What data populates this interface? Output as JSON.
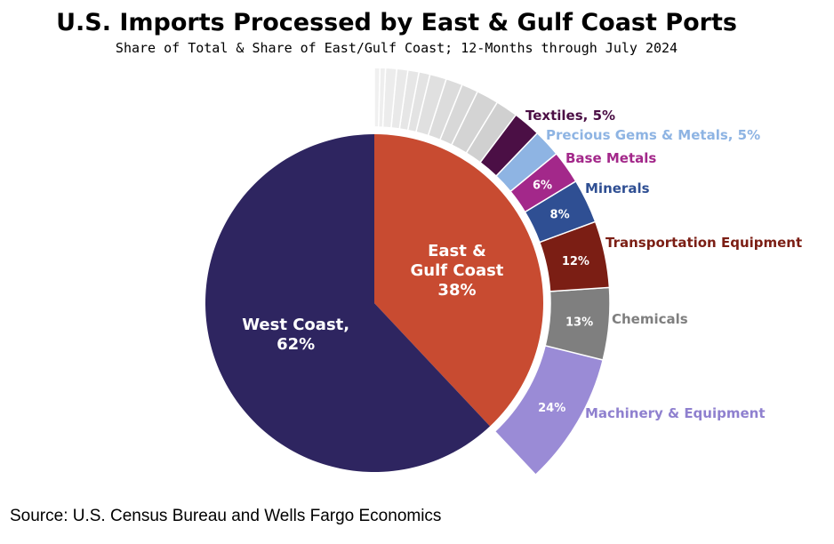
{
  "title": "U.S. Imports Processed by East & Gulf Coast Ports",
  "subtitle": "Share of Total & Share of East/Gulf Coast; 12-Months through July 2024",
  "source": "Source: U.S. Census Bureau and Wells Fargo Economics",
  "chart_data": [
    {
      "type": "pie",
      "slices": [
        {
          "label": "East & Gulf Coast",
          "value": 38,
          "label_lines": [
            "East &",
            "Gulf Coast",
            "38%"
          ],
          "color": "#c84b31"
        },
        {
          "label": "West Coast",
          "value": 62,
          "label_lines": [
            "West Coast,",
            "62%"
          ],
          "color": "#2e2560"
        }
      ]
    },
    {
      "type": "pie",
      "breakdown_of": "East & Gulf Coast",
      "segments": [
        {
          "name": "Machinery & Equipment",
          "value": 24,
          "value_text": "24%",
          "color": "#9a8bd6",
          "label": "Machinery & Equipment",
          "label_color": "#8f80cf"
        },
        {
          "name": "Chemicals",
          "value": 13,
          "value_text": "13%",
          "color": "#7f7f7f",
          "label": "Chemicals",
          "label_color": "#7f7f7f"
        },
        {
          "name": "Transportation Equipment",
          "value": 12,
          "value_text": "12%",
          "color": "#7b1e14",
          "label": "Transportation Equipment",
          "label_color": "#7b1e14"
        },
        {
          "name": "Minerals",
          "value": 8,
          "value_text": "8%",
          "color": "#2f4f93",
          "label": "Minerals",
          "label_color": "#2f4f93"
        },
        {
          "name": "Base Metals",
          "value": 6,
          "value_text": "6%",
          "color": "#a3288a",
          "label": "Base Metals",
          "label_color": "#a3288a"
        },
        {
          "name": "Precious Gems & Metals",
          "value": 5,
          "value_text": "",
          "color": "#8eb4e3",
          "label": "Precious Gems & Metals, 5%",
          "label_color": "#8eb4e3"
        },
        {
          "name": "Textiles",
          "value": 5,
          "value_text": "",
          "color": "#4b0f45",
          "label": "Textiles, 5%",
          "label_color": "#4b0f45"
        },
        {
          "name": "",
          "value": 4,
          "value_text": "",
          "color": "#d0d0d0",
          "label": "",
          "label_color": ""
        },
        {
          "name": "",
          "value": 4,
          "value_text": "",
          "color": "#d4d4d4",
          "label": "",
          "label_color": ""
        },
        {
          "name": "",
          "value": 3,
          "value_text": "",
          "color": "#d8d8d8",
          "label": "",
          "label_color": ""
        },
        {
          "name": "",
          "value": 3,
          "value_text": "",
          "color": "#dcdcdc",
          "label": "",
          "label_color": ""
        },
        {
          "name": "",
          "value": 3,
          "value_text": "",
          "color": "#e0e0e0",
          "label": "",
          "label_color": ""
        },
        {
          "name": "",
          "value": 2,
          "value_text": "",
          "color": "#e3e3e3",
          "label": "",
          "label_color": ""
        },
        {
          "name": "",
          "value": 2,
          "value_text": "",
          "color": "#e6e6e6",
          "label": "",
          "label_color": ""
        },
        {
          "name": "",
          "value": 2,
          "value_text": "",
          "color": "#e9e9e9",
          "label": "",
          "label_color": ""
        },
        {
          "name": "",
          "value": 2,
          "value_text": "",
          "color": "#ececec",
          "label": "",
          "label_color": ""
        },
        {
          "name": "",
          "value": 1,
          "value_text": "",
          "color": "#eeeeee",
          "label": "",
          "label_color": ""
        },
        {
          "name": "",
          "value": 1,
          "value_text": "",
          "color": "#f0f0f0",
          "label": "",
          "label_color": ""
        }
      ]
    }
  ]
}
